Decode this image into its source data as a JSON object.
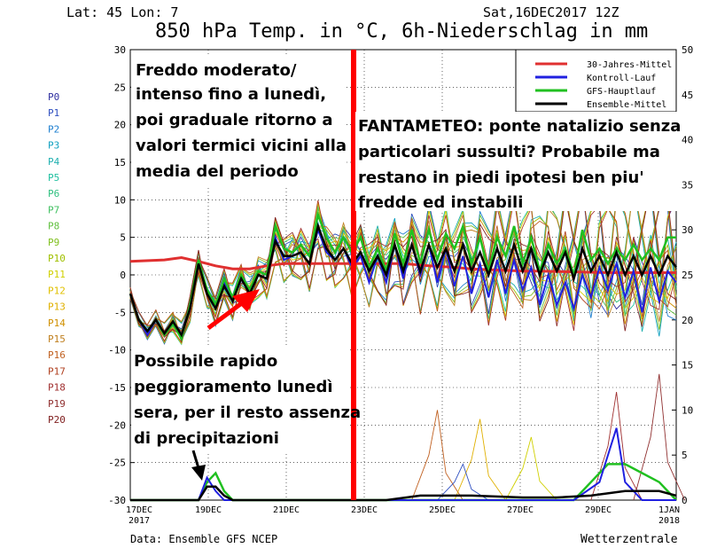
{
  "header": {
    "coords": "Lat: 45 Lon: 7",
    "run": "Sat,16DEC2017 12Z",
    "title": "850 hPa Temp. in °C, 6h-Niederschlag in mm"
  },
  "footer": {
    "source": "Data: Ensemble GFS NCEP",
    "brand": "Wetterzentrale"
  },
  "members_list": [
    "P0",
    "P1",
    "P2",
    "P3",
    "P4",
    "P5",
    "P6",
    "P7",
    "P8",
    "P9",
    "P10",
    "P11",
    "P12",
    "P13",
    "P14",
    "P15",
    "P16",
    "P17",
    "P18",
    "P19",
    "P20"
  ],
  "colors": {
    "mittel30": "#e03030",
    "kontroll": "#2020e0",
    "gfs": "#20c020",
    "ensemble": "#000000",
    "divider": "#ff0000",
    "members": [
      "#3030a0",
      "#3050c0",
      "#2080d0",
      "#10a0c0",
      "#20b0b0",
      "#20c0a0",
      "#30c080",
      "#40c060",
      "#60c040",
      "#80c020",
      "#a0c000",
      "#d0d000",
      "#e0c000",
      "#e0b000",
      "#d09000",
      "#c08020",
      "#c06020",
      "#b04020",
      "#a03030",
      "#903030",
      "#802020"
    ]
  },
  "annotations": {
    "top_left": [
      "Freddo moderato/",
      "intenso fino a lunedì,",
      "poi graduale ritorno a",
      "valori termici vicini alla",
      "media del periodo"
    ],
    "right": [
      "FANTAMETEO: ponte natalizio senza",
      "particolari sussulti? Probabile ma",
      "restano in piedi ipotesi ben piu'",
      "fredde ed instabili"
    ],
    "bottom_left": [
      "Possibile rapido",
      "peggioramento lunedì",
      "sera, per il resto assenza",
      "di precipitazioni"
    ]
  },
  "chart_data": {
    "type": "line",
    "x_labels": [
      "17DEC",
      "19DEC",
      "21DEC",
      "23DEC",
      "25DEC",
      "27DEC",
      "29DEC",
      "1JAN"
    ],
    "x_sublabels": [
      "2017",
      "",
      "",
      "",
      "",
      "",
      "",
      "2018"
    ],
    "y_left_lim": [
      -30,
      30
    ],
    "y_left_ticks": [
      "30",
      "25",
      "20",
      "15",
      "10",
      "5",
      "0",
      "-5",
      "-10",
      "-15",
      "-20",
      "-25",
      "-30"
    ],
    "y_right_lim": [
      0,
      50
    ],
    "y_right_ticks": [
      "50",
      "45",
      "40",
      "35",
      "30",
      "25",
      "20",
      "15",
      "10",
      "5",
      "0"
    ],
    "legend": [
      "30-Jahres-Mittel",
      "Kontroll-Lauf",
      "GFS-Hauptlauf",
      "Ensemble-Mittel"
    ],
    "legend_position": "top-right",
    "temperature": {
      "x_steps": 65,
      "mittel30": [
        1.8,
        2.0,
        2.3,
        1.8,
        1.2,
        0.8,
        0.8,
        1.2,
        1.5,
        1.5,
        1.5,
        1.5,
        1.5,
        1.2,
        1.0,
        0.8,
        0.7,
        0.6,
        0.5,
        0.5,
        0.4,
        0.3,
        0.3,
        0.3,
        0.3
      ],
      "mittel30_x": [
        0,
        4,
        6,
        8,
        10,
        12,
        14,
        16,
        18,
        20,
        24,
        28,
        32,
        35,
        38,
        40,
        42,
        44,
        46,
        48,
        52,
        56,
        60,
        62,
        64
      ],
      "gfs": [
        -2.5,
        -6.0,
        -7.5,
        -6.0,
        -8.0,
        -6.5,
        -8.5,
        -4.0,
        2.0,
        -2.0,
        -4.0,
        -0.5,
        -3.0,
        0.0,
        -2.0,
        0.5,
        0.0,
        6.5,
        3.5,
        3.0,
        4.0,
        2.5,
        8.0,
        5.0,
        3.0,
        5.0,
        3.0,
        5.0,
        1.0,
        3.5,
        0.5,
        5.5,
        1.5,
        6.0,
        1.5,
        6.0,
        2.0,
        5.5,
        3.5,
        6.5,
        1.5,
        5.0,
        0.5,
        5.0,
        2.5,
        6.5,
        1.5,
        5.0,
        0.5,
        4.0,
        1.5,
        3.5,
        0.0,
        6.0,
        2.0,
        3.5,
        1.5,
        3.5,
        2.0,
        4.0,
        2.0,
        3.5,
        2.0,
        5.0,
        5.0
      ],
      "kontroll": [
        -2.5,
        -6.0,
        -8.0,
        -6.0,
        -8.0,
        -6.5,
        -8.0,
        -4.0,
        1.5,
        -2.5,
        -4.5,
        -1.0,
        -3.5,
        -0.5,
        -2.5,
        0.0,
        -0.5,
        5.0,
        2.0,
        2.5,
        3.0,
        1.5,
        6.0,
        3.0,
        2.0,
        3.5,
        1.0,
        2.5,
        -1.0,
        2.5,
        -1.0,
        4.0,
        -0.5,
        4.0,
        0.0,
        4.0,
        -1.0,
        3.5,
        -1.5,
        2.5,
        -2.5,
        1.5,
        -3.0,
        2.0,
        -2.5,
        2.0,
        -2.0,
        1.0,
        -4.0,
        0.0,
        -4.0,
        -1.0,
        -4.5,
        0.0,
        -3.0,
        1.0,
        -2.0,
        1.5,
        -3.0,
        0.5,
        -5.0,
        1.0,
        -3.5,
        0.5,
        -1.0
      ],
      "ensemble": [
        -2.5,
        -6.0,
        -7.5,
        -6.0,
        -7.8,
        -6.2,
        -8.0,
        -4.5,
        1.5,
        -2.5,
        -4.5,
        -1.5,
        -3.5,
        -0.5,
        -2.5,
        0.0,
        -0.5,
        4.5,
        2.5,
        2.5,
        3.0,
        1.5,
        6.5,
        3.5,
        2.0,
        3.5,
        1.5,
        3.0,
        0.5,
        2.5,
        0.0,
        4.0,
        0.5,
        4.0,
        0.5,
        4.0,
        1.0,
        3.5,
        0.5,
        4.0,
        0.5,
        3.0,
        0.0,
        3.5,
        0.5,
        4.0,
        0.5,
        3.5,
        0.0,
        3.0,
        0.5,
        3.0,
        -0.5,
        3.5,
        0.5,
        2.5,
        0.0,
        3.0,
        0.0,
        2.5,
        0.0,
        2.5,
        0.0,
        2.5,
        1.0
      ]
    },
    "precipitation": {
      "gfs": [
        [
          0,
          0
        ],
        [
          8,
          0
        ],
        [
          9,
          2
        ],
        [
          10,
          3
        ],
        [
          11,
          1
        ],
        [
          12,
          0
        ],
        [
          40,
          0
        ],
        [
          44,
          0
        ],
        [
          48,
          0
        ],
        [
          52,
          0
        ],
        [
          54,
          2
        ],
        [
          56,
          4
        ],
        [
          58,
          4
        ],
        [
          60,
          3
        ],
        [
          62,
          2
        ],
        [
          64,
          0
        ]
      ],
      "kontroll": [
        [
          0,
          0
        ],
        [
          8,
          0
        ],
        [
          9,
          2.5
        ],
        [
          10,
          1
        ],
        [
          11,
          0
        ],
        [
          12,
          0
        ],
        [
          52,
          0
        ],
        [
          55,
          2
        ],
        [
          57,
          8
        ],
        [
          58,
          2
        ],
        [
          60,
          0
        ],
        [
          64,
          0
        ]
      ],
      "ensemble": [
        [
          0,
          0
        ],
        [
          8,
          0
        ],
        [
          9,
          1.5
        ],
        [
          10,
          1.5
        ],
        [
          11,
          0.5
        ],
        [
          12,
          0
        ],
        [
          20,
          0
        ],
        [
          30,
          0
        ],
        [
          34,
          0.5
        ],
        [
          40,
          0.5
        ],
        [
          46,
          0.3
        ],
        [
          50,
          0.3
        ],
        [
          54,
          0.5
        ],
        [
          58,
          1
        ],
        [
          62,
          1
        ],
        [
          64,
          0.5
        ]
      ]
    }
  }
}
